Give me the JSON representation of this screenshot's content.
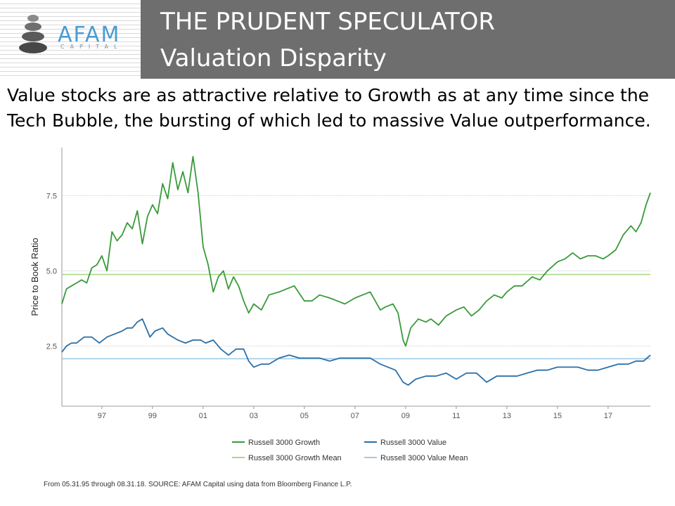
{
  "header": {
    "logo_text": "AFAM",
    "logo_subtext": "CAPITAL",
    "title": "THE PRUDENT SPECULATOR",
    "subtitle": "Valuation Disparity"
  },
  "intro_line1": "Value stocks are as attractive relative to Growth as at any time since the",
  "intro_line2": "Tech Bubble, the bursting of which led to massive Value outperformance.",
  "source": "From 05.31.95 through 08.31.18. SOURCE: AFAM Capital using data from Bloomberg Finance L.P.",
  "colors": {
    "growth": "#3a9a3a",
    "value": "#2b6fa6",
    "growth_mean": "#a7d98a",
    "value_mean": "#9fcbe8"
  },
  "chart_data": {
    "type": "line",
    "ylabel": "Price to Book Ratio",
    "xlabel": "",
    "xlim": [
      1995.42,
      2018.67
    ],
    "ylim": [
      0.5,
      9.1
    ],
    "yticks": [
      2.5,
      5.0,
      7.5
    ],
    "ytick_labels": [
      "2.5",
      "5.0",
      "7.5"
    ],
    "xticks": [
      1997,
      1999,
      2001,
      2003,
      2005,
      2007,
      2009,
      2011,
      2013,
      2015,
      2017
    ],
    "xtick_labels": [
      "97",
      "99",
      "01",
      "03",
      "05",
      "07",
      "09",
      "11",
      "13",
      "15",
      "17"
    ],
    "grid": "horizontal",
    "legend_position": "bottom",
    "series": [
      {
        "name": "Russell 3000 Growth",
        "x": [
          1995.42,
          1995.6,
          1995.8,
          1996.0,
          1996.2,
          1996.4,
          1996.6,
          1996.8,
          1997.0,
          1997.2,
          1997.4,
          1997.6,
          1997.8,
          1998.0,
          1998.2,
          1998.4,
          1998.6,
          1998.8,
          1999.0,
          1999.2,
          1999.4,
          1999.6,
          1999.8,
          2000.0,
          2000.2,
          2000.4,
          2000.6,
          2000.8,
          2001.0,
          2001.2,
          2001.4,
          2001.6,
          2001.8,
          2002.0,
          2002.2,
          2002.4,
          2002.6,
          2002.8,
          2003.0,
          2003.3,
          2003.6,
          2004.0,
          2004.3,
          2004.6,
          2005.0,
          2005.3,
          2005.6,
          2006.0,
          2006.3,
          2006.6,
          2007.0,
          2007.3,
          2007.6,
          2007.8,
          2008.0,
          2008.2,
          2008.5,
          2008.7,
          2008.9,
          2009.0,
          2009.2,
          2009.5,
          2009.8,
          2010.0,
          2010.3,
          2010.6,
          2011.0,
          2011.3,
          2011.6,
          2011.9,
          2012.2,
          2012.5,
          2012.8,
          2013.0,
          2013.3,
          2013.6,
          2014.0,
          2014.3,
          2014.6,
          2015.0,
          2015.3,
          2015.6,
          2015.9,
          2016.2,
          2016.5,
          2016.8,
          2017.0,
          2017.3,
          2017.6,
          2017.9,
          2018.1,
          2018.3,
          2018.5,
          2018.67
        ],
        "values": [
          3.9,
          4.4,
          4.5,
          4.6,
          4.7,
          4.6,
          5.1,
          5.2,
          5.5,
          5.0,
          6.3,
          6.0,
          6.2,
          6.6,
          6.4,
          7.0,
          5.9,
          6.8,
          7.2,
          6.9,
          7.9,
          7.4,
          8.6,
          7.7,
          8.3,
          7.6,
          8.8,
          7.6,
          5.8,
          5.2,
          4.3,
          4.8,
          5.0,
          4.4,
          4.8,
          4.5,
          4.0,
          3.6,
          3.9,
          3.7,
          4.2,
          4.3,
          4.4,
          4.5,
          4.0,
          4.0,
          4.2,
          4.1,
          4.0,
          3.9,
          4.1,
          4.2,
          4.3,
          4.0,
          3.7,
          3.8,
          3.9,
          3.6,
          2.7,
          2.5,
          3.1,
          3.4,
          3.3,
          3.4,
          3.2,
          3.5,
          3.7,
          3.8,
          3.5,
          3.7,
          4.0,
          4.2,
          4.1,
          4.3,
          4.5,
          4.5,
          4.8,
          4.7,
          5.0,
          5.3,
          5.4,
          5.6,
          5.4,
          5.5,
          5.5,
          5.4,
          5.5,
          5.7,
          6.2,
          6.5,
          6.3,
          6.6,
          7.2,
          7.6
        ]
      },
      {
        "name": "Russell 3000 Value",
        "x": [
          1995.42,
          1995.6,
          1995.8,
          1996.0,
          1996.3,
          1996.6,
          1996.9,
          1997.2,
          1997.5,
          1997.8,
          1998.0,
          1998.2,
          1998.4,
          1998.6,
          1998.9,
          1999.1,
          1999.4,
          1999.6,
          1999.8,
          2000.0,
          2000.3,
          2000.6,
          2000.9,
          2001.1,
          2001.4,
          2001.7,
          2002.0,
          2002.3,
          2002.6,
          2002.8,
          2003.0,
          2003.3,
          2003.6,
          2004.0,
          2004.4,
          2004.8,
          2005.2,
          2005.6,
          2006.0,
          2006.4,
          2006.8,
          2007.2,
          2007.6,
          2008.0,
          2008.3,
          2008.6,
          2008.9,
          2009.1,
          2009.4,
          2009.8,
          2010.2,
          2010.6,
          2011.0,
          2011.4,
          2011.8,
          2012.2,
          2012.6,
          2013.0,
          2013.4,
          2013.8,
          2014.2,
          2014.6,
          2015.0,
          2015.4,
          2015.8,
          2016.2,
          2016.6,
          2017.0,
          2017.4,
          2017.8,
          2018.1,
          2018.4,
          2018.67
        ],
        "values": [
          2.3,
          2.5,
          2.6,
          2.6,
          2.8,
          2.8,
          2.6,
          2.8,
          2.9,
          3.0,
          3.1,
          3.1,
          3.3,
          3.4,
          2.8,
          3.0,
          3.1,
          2.9,
          2.8,
          2.7,
          2.6,
          2.7,
          2.7,
          2.6,
          2.7,
          2.4,
          2.2,
          2.4,
          2.4,
          2.0,
          1.8,
          1.9,
          1.9,
          2.1,
          2.2,
          2.1,
          2.1,
          2.1,
          2.0,
          2.1,
          2.1,
          2.1,
          2.1,
          1.9,
          1.8,
          1.7,
          1.3,
          1.2,
          1.4,
          1.5,
          1.5,
          1.6,
          1.4,
          1.6,
          1.6,
          1.3,
          1.5,
          1.5,
          1.5,
          1.6,
          1.7,
          1.7,
          1.8,
          1.8,
          1.8,
          1.7,
          1.7,
          1.8,
          1.9,
          1.9,
          2.0,
          2.0,
          2.2
        ]
      },
      {
        "name": "Russell 3000 Growth Mean",
        "values": [
          4.88
        ]
      },
      {
        "name": "Russell 3000 Value Mean",
        "values": [
          2.08
        ]
      }
    ]
  }
}
